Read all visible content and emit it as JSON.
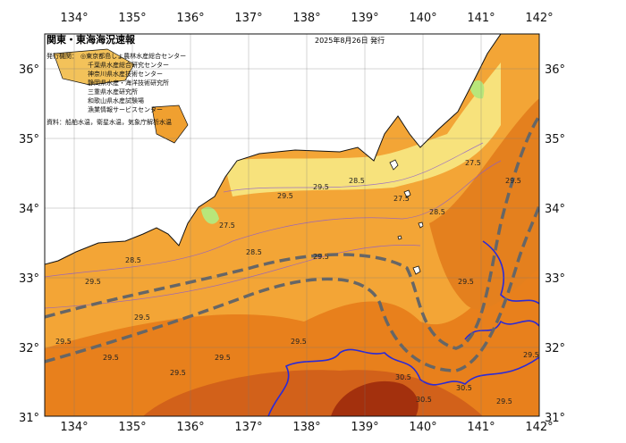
{
  "header": {
    "title": "関東・東海海況速報",
    "date": "2025年8月26日 発行",
    "issuer_label": "発行機関：",
    "issuers": [
      "◎東京都島しょ農林水産総合センター",
      "千葉県水産総合研究センター",
      "神奈川県水産技術センター",
      "静岡県水産・海洋技術研究所",
      "三重県水産研究所",
      "和歌山県水産試験場",
      "漁業情報サービスセンター"
    ],
    "source": "資料：船舶水温，衛星水温，気象庁解析水温"
  },
  "map": {
    "lon_ticks": [
      {
        "value": 134,
        "label": "134°"
      },
      {
        "value": 135,
        "label": "135°"
      },
      {
        "value": 136,
        "label": "136°"
      },
      {
        "value": 137,
        "label": "137°"
      },
      {
        "value": 138,
        "label": "138°"
      },
      {
        "value": 139,
        "label": "139°"
      },
      {
        "value": 140,
        "label": "140°"
      },
      {
        "value": 141,
        "label": "141°"
      },
      {
        "value": 142,
        "label": "142°"
      }
    ],
    "lat_ticks": [
      {
        "value": 31,
        "label": "31°"
      },
      {
        "value": 32,
        "label": "32°"
      },
      {
        "value": 33,
        "label": "33°"
      },
      {
        "value": 34,
        "label": "34°"
      },
      {
        "value": 35,
        "label": "35°"
      },
      {
        "value": 36,
        "label": "36°"
      }
    ],
    "contour_labels": [
      "28.5",
      "29.5",
      "29.5",
      "29.5",
      "29.5",
      "29.5",
      "29.5",
      "29.5",
      "30.5",
      "30.5",
      "29.5",
      "29.5",
      "28.5",
      "27.5",
      "27.5",
      "28.5",
      "29.5",
      "29.5",
      "27.5",
      "28.5",
      "29.5",
      "30.5",
      "29.5",
      "29.5"
    ]
  }
}
